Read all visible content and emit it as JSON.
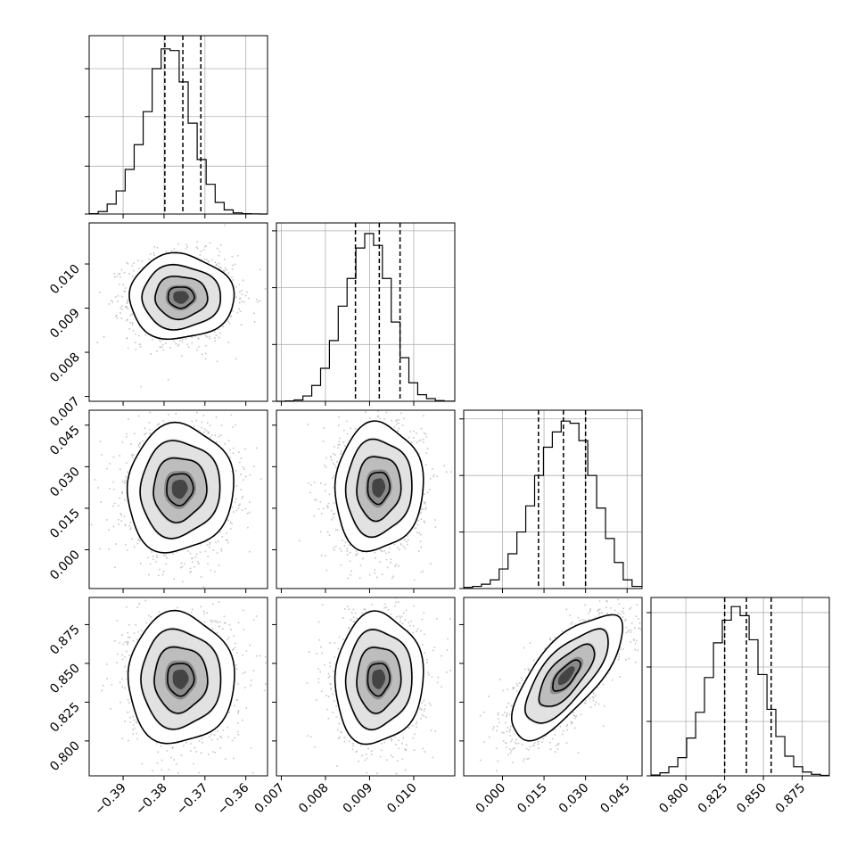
{
  "chart_data": {
    "type": "corner",
    "title": "",
    "parameters": [
      {
        "label": "",
        "range": [
          -0.3983,
          -0.3547
        ],
        "ticks": [
          -0.39,
          -0.38,
          -0.37,
          -0.36
        ],
        "tick_labels": [
          "−0.39",
          "−0.38",
          "−0.37",
          "−0.36"
        ],
        "quantiles": [
          -0.3798,
          -0.3754,
          -0.371
        ],
        "hist": {
          "edges": [
            -0.3983,
            -0.3961,
            -0.3939,
            -0.3917,
            -0.3895,
            -0.3873,
            -0.3851,
            -0.3829,
            -0.3807,
            -0.3785,
            -0.3763,
            -0.3741,
            -0.3719,
            -0.3697,
            -0.3675,
            -0.3653,
            -0.3631,
            -0.3609,
            -0.3587,
            -0.3565,
            -0.3547
          ],
          "counts": [
            0.02,
            0.15,
            0.6,
            1.4,
            2.7,
            4.2,
            6.2,
            8.8,
            10.0,
            9.9,
            8.0,
            5.5,
            3.3,
            1.8,
            0.7,
            0.25,
            0.07,
            0.02,
            0.01,
            0.0
          ],
          "ylim": [
            0,
            10.8
          ],
          "gridlines": [
            0,
            2.9,
            5.9,
            8.8
          ]
        }
      },
      {
        "label": "",
        "range": [
          0.00689,
          0.01093
        ],
        "ticks": [
          0.007,
          0.008,
          0.009,
          0.01
        ],
        "tick_labels": [
          "0.007",
          "0.008",
          "0.009",
          "0.010"
        ],
        "quantiles": [
          0.00868,
          0.00922,
          0.00969
        ],
        "hist": {
          "edges": [
            0.00689,
            0.00709,
            0.00729,
            0.00749,
            0.00769,
            0.00789,
            0.00809,
            0.00829,
            0.00849,
            0.00869,
            0.00889,
            0.00909,
            0.00929,
            0.00949,
            0.00969,
            0.00989,
            0.01009,
            0.01029,
            0.01049,
            0.01069,
            0.01093
          ],
          "counts": [
            0.0,
            0.03,
            0.1,
            0.4,
            1.2,
            2.5,
            4.6,
            7.2,
            9.3,
            11.6,
            12.7,
            11.8,
            9.3,
            6.0,
            3.3,
            1.4,
            0.5,
            0.2,
            0.05,
            0.01
          ],
          "ylim": [
            0,
            13.5
          ],
          "gridlines": [
            0,
            4.3,
            8.6,
            12.9
          ]
        }
      },
      {
        "label": "",
        "range": [
          -0.014,
          0.0504
        ],
        "ticks": [
          0.0,
          0.015,
          0.03,
          0.045
        ],
        "tick_labels": [
          "0.000",
          "0.015",
          "0.030",
          "0.045"
        ],
        "quantiles": [
          0.013,
          0.022,
          0.03
        ],
        "hist": {
          "edges": [
            -0.014,
            -0.0108,
            -0.0076,
            -0.0044,
            -0.0012,
            0.002,
            0.0052,
            0.0084,
            0.0116,
            0.0148,
            0.018,
            0.0212,
            0.0244,
            0.0276,
            0.0308,
            0.034,
            0.0372,
            0.0404,
            0.0436,
            0.0468,
            0.0504
          ],
          "counts": [
            0.05,
            0.1,
            0.2,
            0.4,
            0.9,
            1.6,
            2.6,
            3.8,
            5.2,
            6.5,
            7.2,
            7.7,
            7.6,
            6.8,
            5.2,
            3.7,
            2.3,
            1.2,
            0.4,
            0.1
          ],
          "ylim": [
            0,
            8.2
          ],
          "gridlines": [
            0,
            2.6,
            5.2,
            7.8
          ]
        }
      },
      {
        "label": "",
        "range": [
          0.7775,
          0.8925
        ],
        "ticks": [
          0.8,
          0.825,
          0.85,
          0.875
        ],
        "tick_labels": [
          "0.800",
          "0.825",
          "0.850",
          "0.875"
        ],
        "quantiles": [
          0.825,
          0.839,
          0.855
        ],
        "hist": {
          "edges": [
            0.7775,
            0.7833,
            0.789,
            0.7948,
            0.8005,
            0.8063,
            0.812,
            0.8178,
            0.8235,
            0.8293,
            0.835,
            0.8408,
            0.8465,
            0.8523,
            0.858,
            0.8638,
            0.8695,
            0.8753,
            0.881,
            0.8868,
            0.8925
          ],
          "counts": [
            0.05,
            0.2,
            0.6,
            1.2,
            2.5,
            4.2,
            6.5,
            8.8,
            10.3,
            11.2,
            10.6,
            9.0,
            6.7,
            4.4,
            2.6,
            1.3,
            0.6,
            0.25,
            0.1,
            0.03
          ],
          "ylim": [
            0,
            11.8
          ],
          "gridlines": [
            0,
            3.6,
            7.2,
            10.8
          ]
        }
      }
    ],
    "pairs": [
      {
        "x": 0,
        "y": 1,
        "center": [
          -0.3759,
          0.00925
        ],
        "sigma": [
          0.0064,
          0.00048
        ],
        "rho": 0.0
      },
      {
        "x": 0,
        "y": 2,
        "center": [
          -0.3762,
          0.022
        ],
        "sigma": [
          0.0065,
          0.0115
        ],
        "rho": 0.05
      },
      {
        "x": 1,
        "y": 2,
        "center": [
          0.0092,
          0.0225
        ],
        "sigma": [
          0.0005,
          0.0115
        ],
        "rho": 0.05
      },
      {
        "x": 0,
        "y": 3,
        "center": [
          -0.376,
          0.84
        ],
        "sigma": [
          0.0065,
          0.021
        ],
        "rho": 0.0
      },
      {
        "x": 1,
        "y": 3,
        "center": [
          0.0092,
          0.84
        ],
        "sigma": [
          0.0005,
          0.021
        ],
        "rho": 0.05
      },
      {
        "x": 2,
        "y": 3,
        "center": [
          0.023,
          0.842
        ],
        "sigma": [
          0.01,
          0.02
        ],
        "rho": 0.72
      }
    ],
    "contour_levels_sigma": [
      0.5,
      1.0,
      1.5,
      2.0
    ],
    "grid": true,
    "legend": "none"
  }
}
